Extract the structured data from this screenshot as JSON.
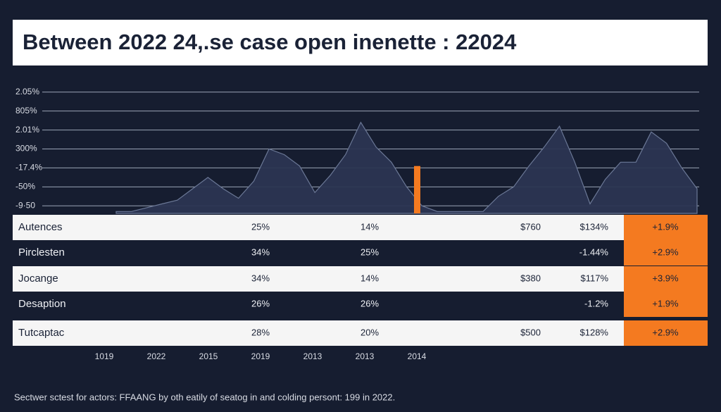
{
  "header": {
    "title": "Between 2022 24,.se case open inenette : 22024"
  },
  "chart_data": {
    "type": "area",
    "color": "#2b3552",
    "ylim": [
      -0.4,
      6.4
    ],
    "yticks": [
      {
        "value": 6,
        "label": "2.05%"
      },
      {
        "value": 5,
        "label": "805%"
      },
      {
        "value": 4,
        "label": "2.01%"
      },
      {
        "value": 3,
        "label": "300%"
      },
      {
        "value": 2,
        "label": "-17.4%"
      },
      {
        "value": 1,
        "label": "-50%"
      },
      {
        "value": 0,
        "label": "-9·50"
      }
    ],
    "grid": true,
    "values": [
      -0.3,
      -0.3,
      -0.1,
      0.1,
      0.3,
      0.9,
      1.5,
      0.9,
      0.4,
      1.3,
      3.0,
      2.7,
      2.1,
      0.7,
      1.6,
      2.7,
      4.4,
      3.1,
      2.3,
      1.0,
      0.0,
      -0.3,
      -0.3,
      -0.3,
      -0.3,
      0.5,
      1.0,
      2.1,
      3.1,
      4.2,
      2.3,
      0.1,
      1.4,
      2.3,
      2.3,
      3.9,
      3.3,
      2.0,
      0.9
    ],
    "marker": {
      "value": 2.1,
      "color": "#f47a20"
    },
    "x_labels": [
      "1019",
      "2022",
      "2015",
      "2019",
      "2013",
      "2013",
      "2014"
    ]
  },
  "table": {
    "highlight_color": "#f47a20",
    "rows": [
      [
        "Autences",
        "25%",
        "14%",
        "$760",
        "$134%",
        "+1.9%"
      ],
      [
        "Pirclesten",
        "34%",
        "25%",
        null,
        "-1.44%",
        "+2.9%"
      ],
      [
        "Jocange",
        "34%",
        "14%",
        "$380",
        "$117%",
        "+3.9%"
      ],
      [
        "Desaption",
        "26%",
        "26%",
        null,
        "-1.2%",
        "+1.9%"
      ],
      [
        "Tutcaptac",
        "28%",
        "20%",
        "$500",
        "$128%",
        "+2.9%"
      ]
    ]
  },
  "footnote": "Sectwer sctest for actors: FFAANG by oth eatily of seatog in and colding persont: 199 in 2022."
}
